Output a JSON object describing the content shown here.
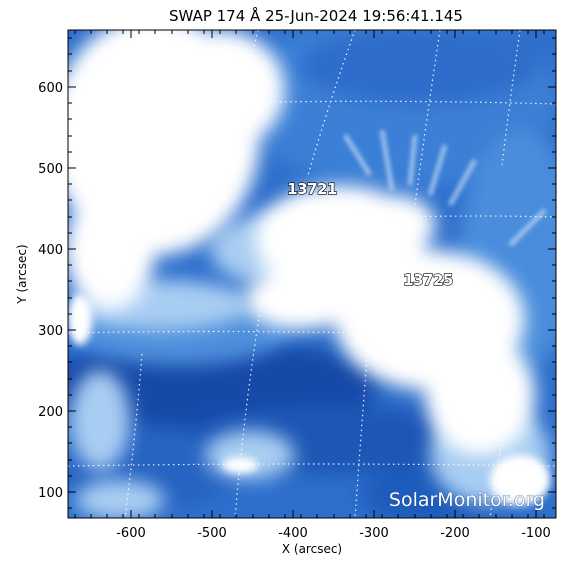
{
  "title": "SWAP 174 Å 25-Jun-2024 19:56:41.145",
  "x_axis": {
    "label": "X (arcsec)",
    "ticks": [
      "-600",
      "-500",
      "-400",
      "-300",
      "-200",
      "-100"
    ]
  },
  "y_axis": {
    "label": "Y (arcsec)",
    "ticks": [
      "600",
      "500",
      "400",
      "300",
      "200",
      "100"
    ]
  },
  "active_regions": [
    {
      "label": "13721"
    },
    {
      "label": "13725"
    }
  ],
  "watermark": "SolarMonitor.org",
  "colors": {
    "deep_blue": "#1450b4",
    "mid_blue": "#3f82d8",
    "light_blue": "#9cc6f0",
    "bright": "#ffffff",
    "grid": "#ffffff"
  }
}
